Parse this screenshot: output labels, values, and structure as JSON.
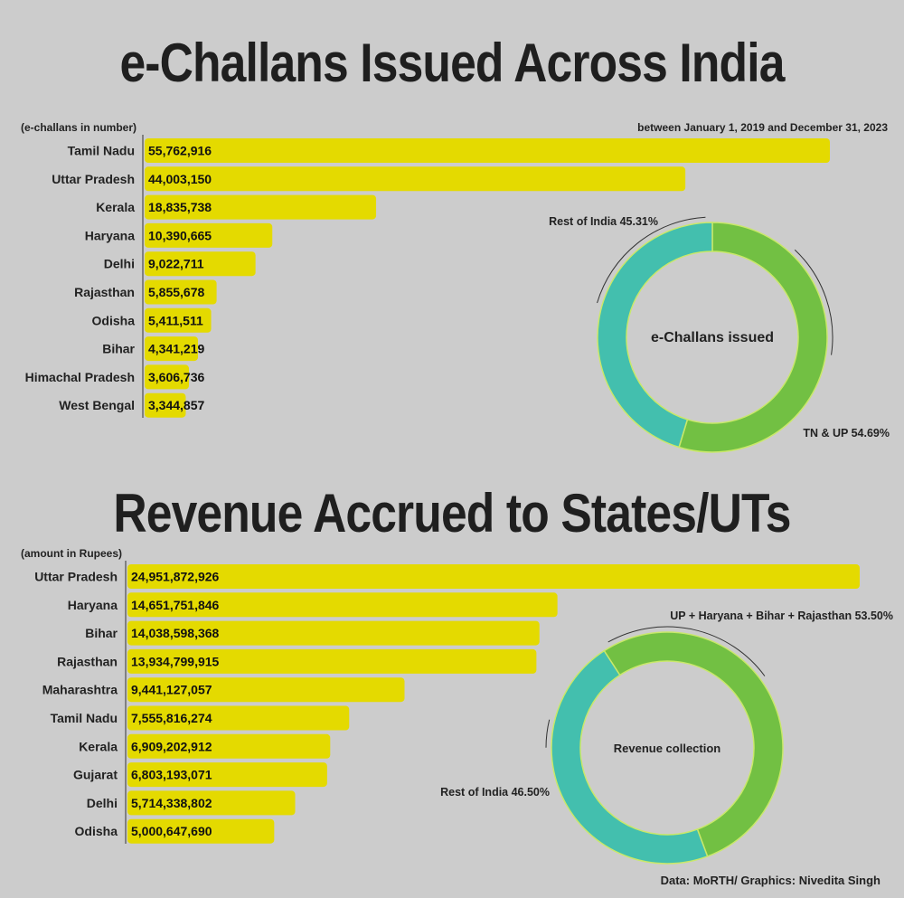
{
  "chart1": {
    "title": "e-Challans Issued Across India",
    "unit_note": "(e-challans in number)",
    "period_note": "between January 1, 2019 and December 31, 2023",
    "bar_color": "#e4da00",
    "chart_data": {
      "type": "bar",
      "categories": [
        "Tamil Nadu",
        "Uttar Pradesh",
        "Kerala",
        "Haryana",
        "Delhi",
        "Rajasthan",
        "Odisha",
        "Bihar",
        "Himachal Pradesh",
        "West Bengal"
      ],
      "values": [
        55762916,
        44003150,
        18835738,
        10390665,
        9022711,
        5855678,
        5411511,
        4341219,
        3606736,
        3344857
      ],
      "value_labels": [
        "55,762,916",
        "44,003,150",
        "18,835,738",
        "10,390,665",
        "9,022,711",
        "5,855,678",
        "5,411,511",
        "4,341,219",
        "3,606,736",
        "3,344,857"
      ]
    },
    "donut": {
      "center_label": "e-Challans issued",
      "chart_data": {
        "type": "pie",
        "categories": [
          "TN & UP",
          "Rest of India"
        ],
        "values": [
          54.69,
          45.31
        ],
        "labels": [
          "TN & UP 54.69%",
          "Rest of India 45.31%"
        ],
        "colors": [
          "#72c043",
          "#43bfae"
        ]
      }
    }
  },
  "chart2": {
    "title": "Revenue Accrued to States/UTs",
    "unit_note": "(amount in Rupees)",
    "bar_color": "#e4da00",
    "chart_data": {
      "type": "bar",
      "categories": [
        "Uttar Pradesh",
        "Haryana",
        "Bihar",
        "Rajasthan",
        "Maharashtra",
        "Tamil Nadu",
        "Kerala",
        "Gujarat",
        "Delhi",
        "Odisha"
      ],
      "values": [
        24951872926,
        14651751846,
        14038598368,
        13934799915,
        9441127057,
        7555816274,
        6909202912,
        6803193071,
        5714338802,
        5000647690
      ],
      "value_labels": [
        "24,951,872,926",
        "14,651,751,846",
        "14,038,598,368",
        "13,934,799,915",
        "9,441,127,057",
        "7,555,816,274",
        "6,909,202,912",
        "6,803,193,071",
        "5,714,338,802",
        "5,000,647,690"
      ]
    },
    "donut": {
      "center_label": "Revenue collection",
      "chart_data": {
        "type": "pie",
        "categories": [
          "UP + Haryana + Bihar + Rajasthan",
          "Rest of India"
        ],
        "values": [
          53.5,
          46.5
        ],
        "labels": [
          "UP + Haryana + Bihar + Rajasthan 53.50%",
          "Rest of India 46.50%"
        ],
        "colors": [
          "#72c043",
          "#43bfae"
        ]
      }
    }
  },
  "footer": "Data: MoRTH/ Graphics: Nivedita Singh"
}
